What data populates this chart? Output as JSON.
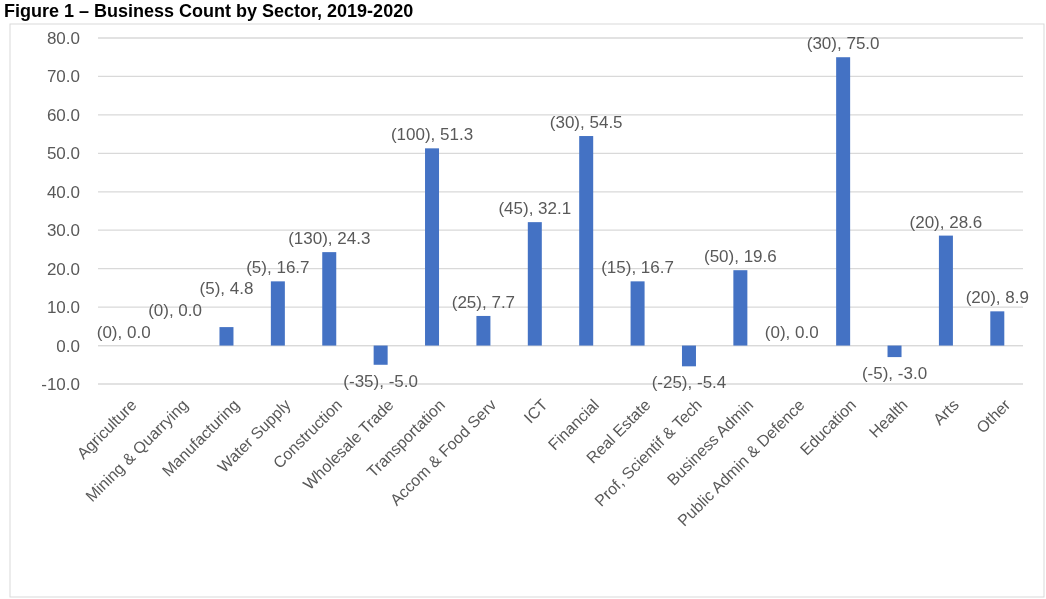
{
  "chart_data": {
    "type": "bar",
    "title": "Figure 1 – Business Count by Sector, 2019-2020",
    "categories": [
      "Agriculture",
      "Mining & Quarrying",
      "Manufacturing",
      "Water Supply",
      "Construction",
      "Wholesale Trade",
      "Transportation",
      "Accom & Food Serv",
      "ICT",
      "Financial",
      "Real Estate",
      "Prof, Scientif & Tech",
      "Business Admin",
      "Public Admin & Defence",
      "Education",
      "Health",
      "Arts",
      "Other"
    ],
    "values": [
      0,
      0,
      4.8,
      16.7,
      24.3,
      -5.0,
      51.3,
      7.7,
      32.1,
      54.5,
      16.7,
      -5.4,
      19.6,
      0,
      75.0,
      -3.0,
      28.6,
      8.9
    ],
    "value_labels": [
      "(0), 0.0",
      "(0), 0.0",
      "(5), 4.8",
      "(5), 16.7",
      "(130), 24.3",
      "(-35), -5.0",
      "(100), 51.3",
      "(25), 7.7",
      "(45), 32.1",
      "(30), 54.5",
      "(15), 16.7",
      "(-25), -5.4",
      "(50), 19.6",
      "(0), 0.0",
      "(30), 75.0",
      "(-5), -3.0",
      "(20), 28.6",
      "(20), 8.9"
    ],
    "color": "#4472c4",
    "ylim": [
      -10,
      80
    ],
    "yticks": [
      {
        "value": -10,
        "label": "-10.0"
      },
      {
        "value": 0,
        "label": "0.0"
      },
      {
        "value": 10,
        "label": "10.0"
      },
      {
        "value": 20,
        "label": "20.0"
      },
      {
        "value": 30,
        "label": "30.0"
      },
      {
        "value": 40,
        "label": "40.0"
      },
      {
        "value": 50,
        "label": "50.0"
      },
      {
        "value": 60,
        "label": "60.0"
      },
      {
        "value": 70,
        "label": "70.0"
      },
      {
        "value": 80,
        "label": "80.0"
      }
    ],
    "grid": "y"
  }
}
